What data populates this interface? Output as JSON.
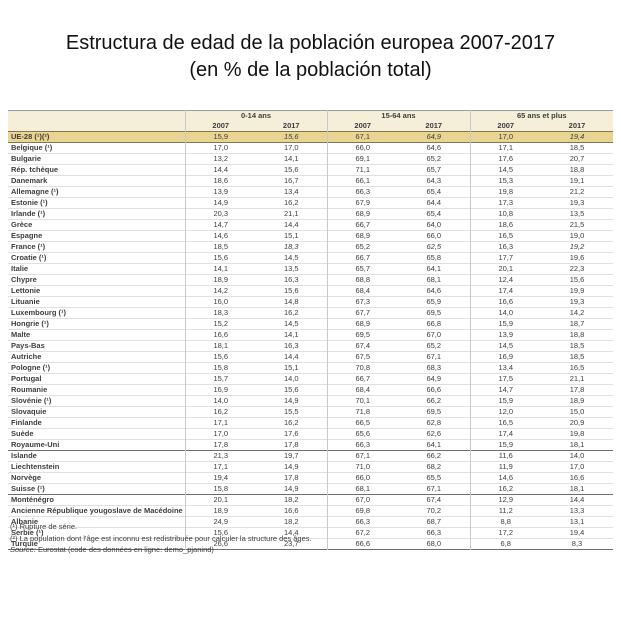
{
  "title": {
    "line1": "Estructura de edad de la población europea 2007-2017",
    "line2": "(en % de la población total)"
  },
  "chart_data": {
    "type": "table",
    "title": "Estructura de edad de la población europea 2007-2017 (en % de la población total)",
    "unit": "% de la población total",
    "column_groups": [
      "0-14 ans",
      "15-64 ans",
      "65 ans et plus"
    ],
    "columns": [
      "2007",
      "2017",
      "2007",
      "2017",
      "2007",
      "2017"
    ],
    "rows": [
      {
        "name": "UE-28 (¹)(²)",
        "values": [
          "15,9",
          "15,6",
          "67,1",
          "64,9",
          "17,0",
          "19,4"
        ],
        "highlight": true,
        "italic_cols": [
          1,
          3,
          5
        ]
      },
      {
        "name": "Belgique (¹)",
        "values": [
          "17,0",
          "17,0",
          "66,0",
          "64,6",
          "17,1",
          "18,5"
        ]
      },
      {
        "name": "Bulgarie",
        "values": [
          "13,2",
          "14,1",
          "69,1",
          "65,2",
          "17,6",
          "20,7"
        ]
      },
      {
        "name": "Rép. tchèque",
        "values": [
          "14,4",
          "15,6",
          "71,1",
          "65,7",
          "14,5",
          "18,8"
        ]
      },
      {
        "name": "Danemark",
        "values": [
          "18,6",
          "16,7",
          "66,1",
          "64,3",
          "15,3",
          "19,1"
        ]
      },
      {
        "name": "Allemagne (¹)",
        "values": [
          "13,9",
          "13,4",
          "66,3",
          "65,4",
          "19,8",
          "21,2"
        ]
      },
      {
        "name": "Estonie (¹)",
        "values": [
          "14,9",
          "16,2",
          "67,9",
          "64,4",
          "17,3",
          "19,3"
        ]
      },
      {
        "name": "Irlande (¹)",
        "values": [
          "20,3",
          "21,1",
          "68,9",
          "65,4",
          "10,8",
          "13,5"
        ]
      },
      {
        "name": "Grèce",
        "values": [
          "14,7",
          "14,4",
          "66,7",
          "64,0",
          "18,6",
          "21,5"
        ]
      },
      {
        "name": "Espagne",
        "values": [
          "14,6",
          "15,1",
          "68,9",
          "66,0",
          "16,5",
          "19,0"
        ]
      },
      {
        "name": "France (¹)",
        "values": [
          "18,5",
          "18,3",
          "65,2",
          "62,5",
          "16,3",
          "19,2"
        ],
        "italic_cols": [
          1,
          3,
          5
        ]
      },
      {
        "name": "Croatie (¹)",
        "values": [
          "15,6",
          "14,5",
          "66,7",
          "65,8",
          "17,7",
          "19,6"
        ]
      },
      {
        "name": "Italie",
        "values": [
          "14,1",
          "13,5",
          "65,7",
          "64,1",
          "20,1",
          "22,3"
        ]
      },
      {
        "name": "Chypre",
        "values": [
          "18,9",
          "16,3",
          "68,8",
          "68,1",
          "12,4",
          "15,6"
        ]
      },
      {
        "name": "Lettonie",
        "values": [
          "14,2",
          "15,6",
          "68,4",
          "64,6",
          "17,4",
          "19,9"
        ]
      },
      {
        "name": "Lituanie",
        "values": [
          "16,0",
          "14,8",
          "67,3",
          "65,9",
          "16,6",
          "19,3"
        ]
      },
      {
        "name": "Luxembourg (¹)",
        "values": [
          "18,3",
          "16,2",
          "67,7",
          "69,5",
          "14,0",
          "14,2"
        ]
      },
      {
        "name": "Hongrie (¹)",
        "values": [
          "15,2",
          "14,5",
          "68,9",
          "66,8",
          "15,9",
          "18,7"
        ]
      },
      {
        "name": "Malte",
        "values": [
          "16,6",
          "14,1",
          "69,5",
          "67,0",
          "13,9",
          "18,8"
        ]
      },
      {
        "name": "Pays-Bas",
        "values": [
          "18,1",
          "16,3",
          "67,4",
          "65,2",
          "14,5",
          "18,5"
        ]
      },
      {
        "name": "Autriche",
        "values": [
          "15,6",
          "14,4",
          "67,5",
          "67,1",
          "16,9",
          "18,5"
        ]
      },
      {
        "name": "Pologne (¹)",
        "values": [
          "15,8",
          "15,1",
          "70,8",
          "68,3",
          "13,4",
          "16,5"
        ]
      },
      {
        "name": "Portugal",
        "values": [
          "15,7",
          "14,0",
          "66,7",
          "64,9",
          "17,5",
          "21,1"
        ]
      },
      {
        "name": "Roumanie",
        "values": [
          "16,9",
          "15,6",
          "68,4",
          "66,6",
          "14,7",
          "17,8"
        ]
      },
      {
        "name": "Slovénie (¹)",
        "values": [
          "14,0",
          "14,9",
          "70,1",
          "66,2",
          "15,9",
          "18,9"
        ]
      },
      {
        "name": "Slovaquie",
        "values": [
          "16,2",
          "15,5",
          "71,8",
          "69,5",
          "12,0",
          "15,0"
        ]
      },
      {
        "name": "Finlande",
        "values": [
          "17,1",
          "16,2",
          "66,5",
          "62,8",
          "16,5",
          "20,9"
        ]
      },
      {
        "name": "Suède",
        "values": [
          "17,0",
          "17,6",
          "65,6",
          "62,6",
          "17,4",
          "19,8"
        ]
      },
      {
        "name": "Royaume-Uni",
        "values": [
          "17,8",
          "17,8",
          "66,3",
          "64,1",
          "15,9",
          "18,1"
        ],
        "divider_after": true
      },
      {
        "name": "Islande",
        "values": [
          "21,3",
          "19,7",
          "67,1",
          "66,2",
          "11,6",
          "14,0"
        ]
      },
      {
        "name": "Liechtenstein",
        "values": [
          "17,1",
          "14,9",
          "71,0",
          "68,2",
          "11,9",
          "17,0"
        ]
      },
      {
        "name": "Norvège",
        "values": [
          "19,4",
          "17,8",
          "66,0",
          "65,5",
          "14,6",
          "16,6"
        ]
      },
      {
        "name": "Suisse (¹)",
        "values": [
          "15,8",
          "14,9",
          "68,1",
          "67,1",
          "16,2",
          "18,1"
        ],
        "divider_after": true
      },
      {
        "name": "Monténégro",
        "values": [
          "20,1",
          "18,2",
          "67,0",
          "67,4",
          "12,9",
          "14,4"
        ]
      },
      {
        "name": "Ancienne République yougoslave de Macédoine (²)",
        "values": [
          "18,9",
          "16,6",
          "69,8",
          "70,2",
          "11,2",
          "13,3"
        ]
      },
      {
        "name": "Albanie",
        "values": [
          "24,9",
          "18,2",
          "66,3",
          "68,7",
          "8,8",
          "13,1"
        ]
      },
      {
        "name": "Serbie (¹)",
        "values": [
          "15,6",
          "14,4",
          "67,2",
          "66,3",
          "17,2",
          "19,4"
        ]
      },
      {
        "name": "Turquie",
        "values": [
          "26,6",
          "23,7",
          "66,6",
          "68,0",
          "6,8",
          "8,3"
        ],
        "divider_after": true
      }
    ]
  },
  "footnotes": {
    "note1": "(¹) Rupture de série.",
    "note2": "(²) La population dont l'âge est inconnu est redistribuée pour calculer la structure des âges.",
    "source_label": "Source:",
    "source_text": "Eurostat (code des données en ligne: demo_pjanind)"
  },
  "colors": {
    "highlight_row_bg": "#e9d492",
    "header_bg": "#f5eed8",
    "highlight_border": "#837652",
    "section_border": "#6f6f6f",
    "row_border": "#e0e0e0",
    "text": "#3d3d3d"
  }
}
